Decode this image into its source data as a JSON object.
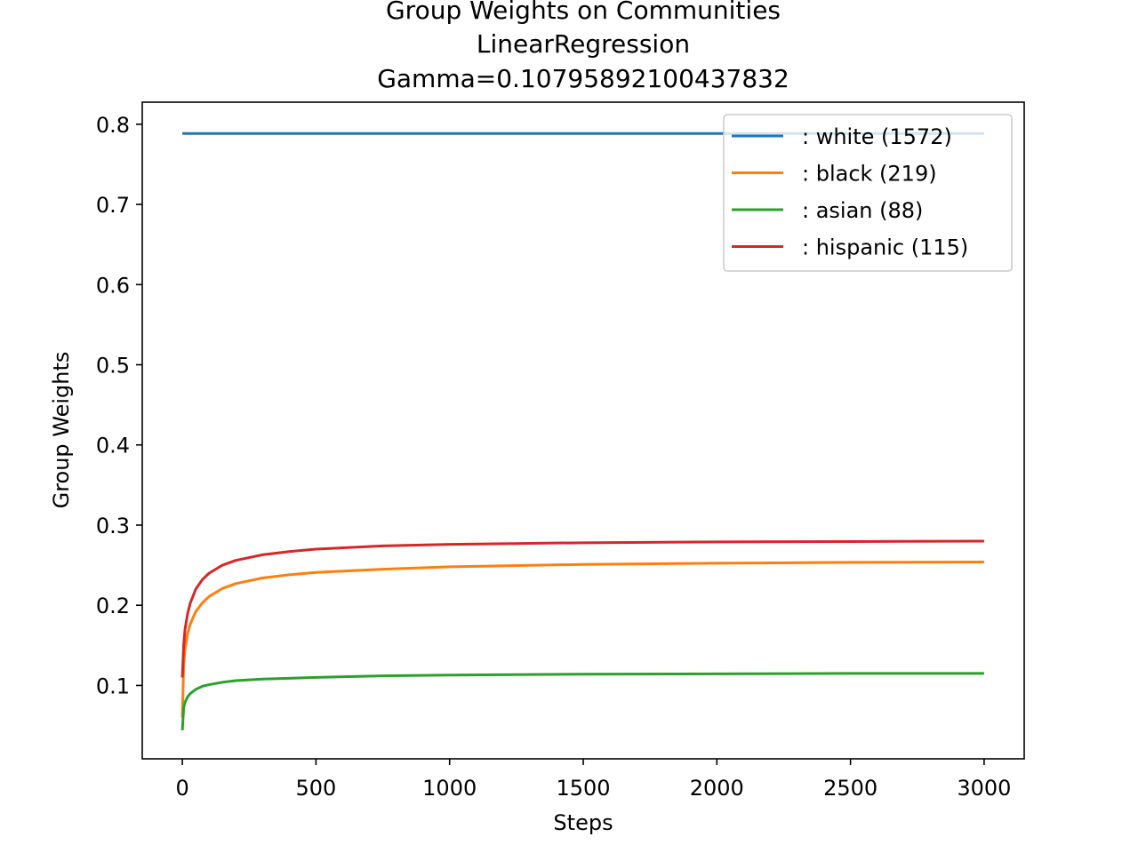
{
  "chart_data": {
    "type": "line",
    "title_lines": [
      "Group Weights on Communities",
      "LinearRegression",
      "Gamma=0.10795892100437832"
    ],
    "xlabel": "Steps",
    "ylabel": "Group Weights",
    "xlim": [
      -150,
      3150
    ],
    "ylim": [
      0.0085,
      0.8275
    ],
    "xticks": [
      0,
      500,
      1000,
      1500,
      2000,
      2500,
      3000
    ],
    "yticks": [
      0.1,
      0.2,
      0.3,
      0.4,
      0.5,
      0.6,
      0.7,
      0.8
    ],
    "grid": false,
    "legend_position": "upper right",
    "series": [
      {
        "name": ": white  (1572)",
        "color": "#1f77b4",
        "x": [
          0,
          3000
        ],
        "y": [
          0.7885,
          0.7885
        ]
      },
      {
        "name": ": black  (219)",
        "color": "#ff7f0e",
        "x": [
          0,
          5,
          10,
          20,
          30,
          50,
          75,
          100,
          150,
          200,
          300,
          400,
          500,
          750,
          1000,
          1500,
          2000,
          2500,
          3000
        ],
        "y": [
          0.06,
          0.125,
          0.145,
          0.165,
          0.177,
          0.192,
          0.203,
          0.211,
          0.221,
          0.227,
          0.234,
          0.238,
          0.241,
          0.245,
          0.248,
          0.251,
          0.2525,
          0.2535,
          0.254
        ]
      },
      {
        "name": ": asian  (88)",
        "color": "#2ca02c",
        "x": [
          0,
          5,
          10,
          20,
          30,
          50,
          75,
          100,
          150,
          200,
          300,
          400,
          500,
          750,
          1000,
          1500,
          2000,
          2500,
          3000
        ],
        "y": [
          0.044,
          0.072,
          0.079,
          0.086,
          0.09,
          0.095,
          0.099,
          0.101,
          0.104,
          0.106,
          0.108,
          0.109,
          0.11,
          0.112,
          0.113,
          0.114,
          0.1145,
          0.115,
          0.115
        ]
      },
      {
        "name": ": hispanic  (115)",
        "color": "#d62728",
        "x": [
          0,
          5,
          10,
          20,
          30,
          50,
          75,
          100,
          150,
          200,
          300,
          400,
          500,
          750,
          1000,
          1500,
          2000,
          2500,
          3000
        ],
        "y": [
          0.11,
          0.15,
          0.17,
          0.19,
          0.203,
          0.22,
          0.232,
          0.24,
          0.25,
          0.256,
          0.263,
          0.267,
          0.27,
          0.274,
          0.276,
          0.278,
          0.279,
          0.2795,
          0.28
        ]
      }
    ]
  }
}
